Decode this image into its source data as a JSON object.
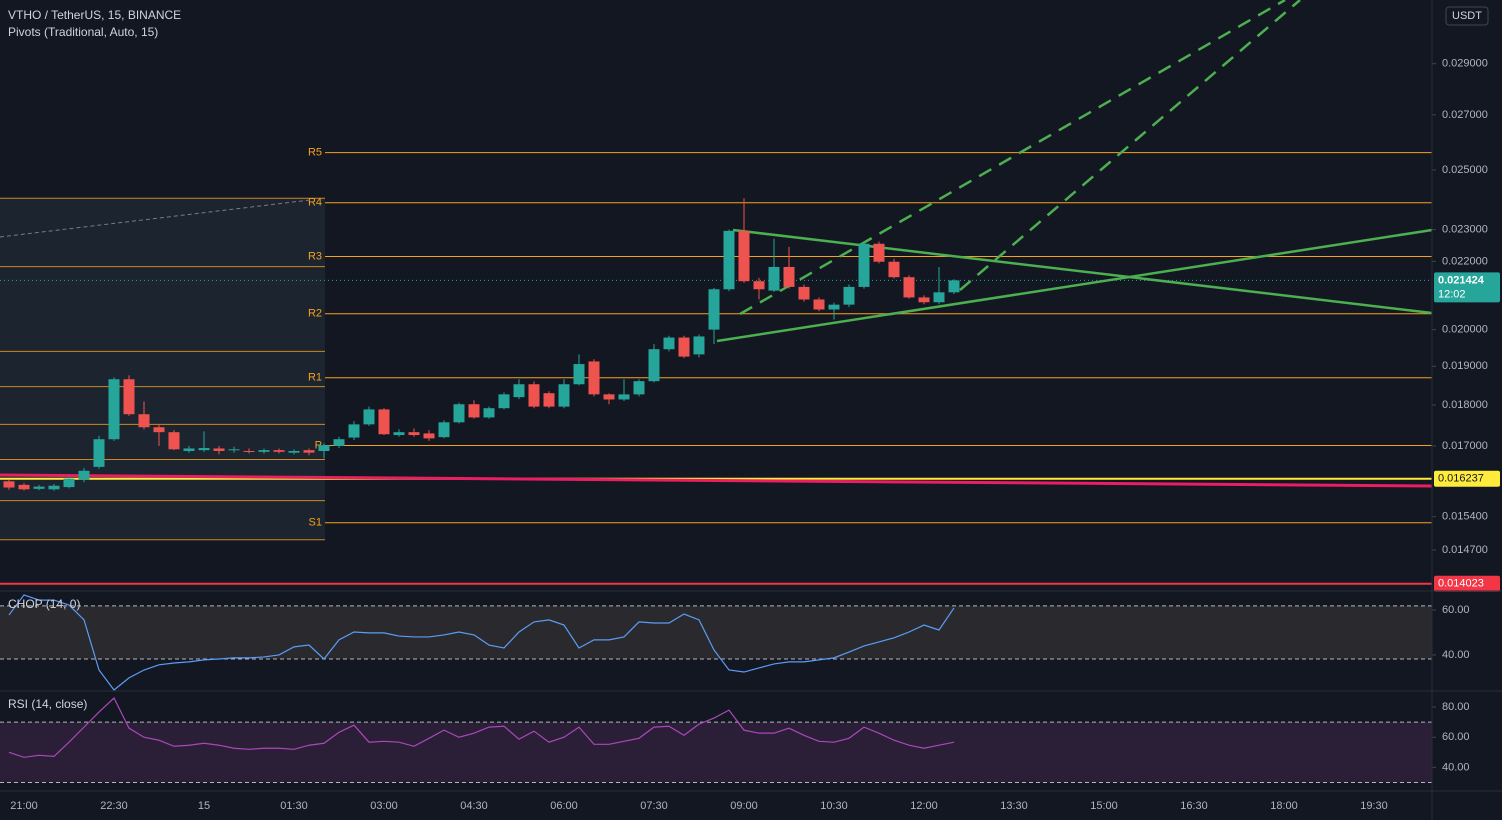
{
  "header": {
    "symbol": "VTHO / TetherUS, 15, BINANCE",
    "indicator": "Pivots (Traditional, Auto, 15)",
    "currency": "USDT"
  },
  "chart_data": [
    {
      "type": "candlestick",
      "categories": [
        null,
        "21:00",
        null,
        null,
        null,
        null,
        null,
        "22:30",
        null,
        null,
        null,
        null,
        null,
        "15",
        null,
        null,
        null,
        null,
        null,
        "01:30",
        null,
        null,
        null,
        null,
        null,
        "03:00",
        null,
        null,
        null,
        null,
        null,
        "04:30",
        null,
        null,
        null,
        null,
        null,
        "06:00",
        null,
        null,
        null,
        null,
        null,
        "07:30",
        null,
        null,
        null,
        null,
        null,
        "09:00",
        null,
        null,
        null,
        null,
        null,
        "10:30",
        null,
        null,
        null,
        null,
        null,
        "12:00",
        null,
        null,
        null,
        null,
        null,
        "13:30",
        null,
        null,
        null,
        null,
        null,
        "15:00",
        null,
        null,
        null,
        null,
        null,
        "16:30",
        null,
        null,
        null,
        null,
        null,
        "18:00",
        null,
        null,
        null,
        null,
        null,
        "19:30",
        null,
        null,
        null
      ],
      "open": [
        0.01618,
        0.0161,
        0.01601,
        0.016,
        0.01605,
        0.01622,
        0.01651,
        0.01716,
        0.01866,
        0.01777,
        0.01745,
        0.01733,
        0.01688,
        0.0169,
        0.01694,
        0.0169,
        0.01688,
        0.01686,
        0.0169,
        0.01684,
        0.0169,
        0.01688,
        0.017,
        0.0172,
        0.01752,
        0.01789,
        0.01726,
        0.01733,
        0.0173,
        0.01721,
        0.01757,
        0.01802,
        0.01769,
        0.01792,
        0.0182,
        0.01853,
        0.0183,
        0.01796,
        0.01853,
        0.01913,
        0.01827,
        0.01814,
        0.01827,
        0.01861,
        0.01946,
        0.01978,
        0.01932,
        0.02,
        0.02116,
        0.02296,
        0.0214,
        0.02112,
        0.02183,
        0.02123,
        0.02086,
        0.02057,
        0.02071,
        0.02123,
        0.02255,
        0.02199,
        0.02152,
        0.02092,
        0.02078,
        0.02107,
        null,
        null,
        null,
        null,
        null,
        null,
        null,
        null,
        null,
        null,
        null,
        null,
        null,
        null,
        null,
        null,
        null,
        null,
        null,
        null,
        null,
        null,
        null,
        null,
        null,
        null,
        null,
        null,
        null,
        null,
        null
      ],
      "high": [
        0.01622,
        0.01614,
        0.0161,
        0.01612,
        0.01628,
        0.01648,
        0.01724,
        0.01871,
        0.01876,
        0.01809,
        0.01752,
        0.01738,
        0.017,
        0.01735,
        0.017,
        0.01698,
        0.01694,
        0.01694,
        0.01694,
        0.01692,
        0.01694,
        0.01706,
        0.01722,
        0.0176,
        0.01796,
        0.01792,
        0.0174,
        0.01742,
        0.01738,
        0.01762,
        0.01806,
        0.01812,
        0.01796,
        0.01832,
        0.01866,
        0.0186,
        0.01835,
        0.01866,
        0.01932,
        0.01919,
        0.0183,
        0.01866,
        0.01866,
        0.0196,
        0.01983,
        0.01983,
        0.01986,
        0.0212,
        0.023,
        0.02403,
        0.0215,
        0.02271,
        0.02245,
        0.0213,
        0.02092,
        0.02077,
        0.0213,
        0.02262,
        0.02262,
        0.02208,
        0.02158,
        0.02098,
        0.02183,
        0.02146,
        null,
        null,
        null,
        null,
        null,
        null,
        null,
        null,
        null,
        null,
        null,
        null,
        null,
        null,
        null,
        null,
        null,
        null,
        null,
        null,
        null,
        null,
        null,
        null,
        null,
        null,
        null,
        null,
        null,
        null,
        null
      ],
      "low": [
        0.01599,
        0.01597,
        0.01598,
        0.01597,
        0.01602,
        0.01616,
        0.01647,
        0.01712,
        0.01773,
        0.0174,
        0.017,
        0.0169,
        0.01684,
        0.01686,
        0.0168,
        0.01684,
        0.01682,
        0.01682,
        0.01682,
        0.0168,
        0.01678,
        0.01671,
        0.01695,
        0.01714,
        0.01748,
        0.01726,
        0.01722,
        0.01722,
        0.01712,
        0.01718,
        0.01754,
        0.01766,
        0.01766,
        0.01789,
        0.01815,
        0.01792,
        0.01792,
        0.01792,
        0.0185,
        0.01822,
        0.01802,
        0.0181,
        0.01822,
        0.01858,
        0.0194,
        0.01922,
        0.01924,
        0.0196,
        0.0211,
        0.02135,
        0.02086,
        0.02108,
        0.02118,
        0.0208,
        0.02052,
        0.02028,
        0.02064,
        0.02118,
        0.02194,
        0.02148,
        0.02088,
        0.02072,
        0.02072,
        0.02102,
        null,
        null,
        null,
        null,
        null,
        null,
        null,
        null,
        null,
        null,
        null,
        null,
        null,
        null,
        null,
        null,
        null,
        null,
        null,
        null,
        null,
        null,
        null,
        null,
        null,
        null,
        null,
        null,
        null,
        null,
        null
      ],
      "close": [
        0.01604,
        0.016,
        0.01606,
        0.01608,
        0.01624,
        0.01642,
        0.01716,
        0.01866,
        0.01777,
        0.01745,
        0.01733,
        0.01692,
        0.01694,
        0.01695,
        0.01688,
        0.01692,
        0.01686,
        0.0169,
        0.01686,
        0.01688,
        0.01684,
        0.01702,
        0.01716,
        0.01752,
        0.01789,
        0.01728,
        0.01733,
        0.01726,
        0.01718,
        0.01757,
        0.01802,
        0.01769,
        0.01792,
        0.01827,
        0.01853,
        0.01796,
        0.01796,
        0.01853,
        0.01906,
        0.01827,
        0.01814,
        0.01827,
        0.01861,
        0.01946,
        0.01978,
        0.01926,
        0.01981,
        0.02116,
        0.02296,
        0.0214,
        0.02116,
        0.02183,
        0.02123,
        0.02086,
        0.02057,
        0.02071,
        0.02123,
        0.02255,
        0.02199,
        0.02152,
        0.02092,
        0.02078,
        0.02107,
        0.021424,
        null,
        null,
        null,
        null,
        null,
        null,
        null,
        null,
        null,
        null,
        null,
        null,
        null,
        null,
        null,
        null,
        null,
        null,
        null,
        null,
        null,
        null,
        null,
        null,
        null,
        null,
        null,
        null,
        null,
        null,
        null
      ],
      "up_color": "#26a69a",
      "down_color": "#ef5350",
      "log_scale": true,
      "ylim": [
        0.0139,
        0.0317
      ],
      "yticks": [
        {
          "value": 0.029,
          "label": "0.029000"
        },
        {
          "value": 0.027,
          "label": "0.027000"
        },
        {
          "value": 0.025,
          "label": "0.025000"
        },
        {
          "value": 0.023,
          "label": "0.023000"
        },
        {
          "value": 0.022,
          "label": "0.022000"
        },
        {
          "value": 0.02,
          "label": "0.020000"
        },
        {
          "value": 0.019,
          "label": "0.019000"
        },
        {
          "value": 0.018,
          "label": "0.018000"
        },
        {
          "value": 0.017,
          "label": "0.017000"
        },
        {
          "value": 0.0154,
          "label": "0.015400"
        },
        {
          "value": 0.0147,
          "label": "0.014700"
        }
      ],
      "pivot_color": "#f7a21b",
      "pivots": [
        {
          "label": "R5",
          "value": 0.02561
        },
        {
          "label": "R4",
          "value": 0.02388
        },
        {
          "label": "R3",
          "value": 0.02215
        },
        {
          "label": "R2",
          "value": 0.02045
        },
        {
          "label": "R1",
          "value": 0.0187
        },
        {
          "label": "P",
          "value": 0.01701
        },
        {
          "label": "S1",
          "value": 0.01527
        }
      ],
      "prior_pivots": [
        0.02403,
        0.02184,
        0.0194,
        0.01847,
        0.01752,
        0.01668,
        0.01575,
        0.01491
      ],
      "price_lines": [
        {
          "value": 0.016237,
          "color": "#ffeb3b"
        },
        {
          "value": 0.014023,
          "color": "#f23645"
        }
      ],
      "last_price": {
        "value": 0.021424,
        "countdown": "12:02",
        "color": "#26a69a"
      }
    },
    {
      "type": "line",
      "title": "CHOP (14, 0)",
      "color": "#5b9cf6",
      "values": [
        57.8,
        66.7,
        64.4,
        64.4,
        62.2,
        55.6,
        33.3,
        24.4,
        29.8,
        33.3,
        35.6,
        36.4,
        36.9,
        37.8,
        38.2,
        38.7,
        38.7,
        39.1,
        40,
        43.6,
        44.4,
        38.2,
        46.7,
        50.2,
        49.8,
        49.8,
        48.4,
        48,
        48,
        48.9,
        50.2,
        48.9,
        44.4,
        43.1,
        50.2,
        54.7,
        55.6,
        53.3,
        43.1,
        46.7,
        46.7,
        48,
        54.7,
        54.2,
        54.2,
        58.2,
        55.6,
        42.2,
        33.3,
        32.4,
        34.2,
        36,
        36.9,
        36.9,
        37.8,
        38.7,
        41.3,
        44,
        45.8,
        47.6,
        50.2,
        53.3,
        51.1,
        60.9,
        null,
        null,
        null,
        null,
        null,
        null,
        null,
        null,
        null,
        null,
        null,
        null,
        null,
        null,
        null,
        null,
        null,
        null,
        null,
        null,
        null,
        null,
        null,
        null,
        null,
        null,
        null,
        null,
        null,
        null,
        null
      ],
      "ylim": [
        24.4,
        68
      ],
      "yticks": [
        {
          "value": 60,
          "label": "60.00"
        },
        {
          "value": 40,
          "label": "40.00"
        }
      ],
      "bands": [
        61.8,
        38.2
      ],
      "band_color": "#2a2a2e"
    },
    {
      "type": "line",
      "title": "RSI (14, close)",
      "color": "#ab47bc",
      "values": [
        50,
        46.7,
        48,
        47.3,
        56.7,
        66.7,
        76.7,
        86,
        66,
        60,
        58,
        54,
        54.7,
        56,
        54.7,
        52.7,
        52,
        52.7,
        52.7,
        52,
        54.7,
        56,
        63.3,
        68,
        56.7,
        57.3,
        56.7,
        54,
        59.3,
        64.7,
        60,
        62.7,
        66.7,
        67.3,
        58.7,
        64,
        56.7,
        60,
        66.7,
        55.3,
        55.3,
        57.3,
        59.3,
        66.7,
        67.3,
        61.3,
        68.7,
        72.7,
        78,
        64.7,
        62.7,
        62.7,
        66,
        61.3,
        57.3,
        56.7,
        59.3,
        66.7,
        62.7,
        58,
        54.7,
        52.7,
        54.7,
        56.7,
        null,
        null,
        null,
        null,
        null,
        null,
        null,
        null,
        null,
        null,
        null,
        null,
        null,
        null,
        null,
        null,
        null,
        null,
        null,
        null,
        null,
        null,
        null,
        null,
        null,
        null,
        null,
        null,
        null,
        null,
        null
      ],
      "ylim": [
        25,
        90
      ],
      "yticks": [
        {
          "value": 80,
          "label": "80.00"
        },
        {
          "value": 60,
          "label": "60.00"
        },
        {
          "value": 40,
          "label": "40.00"
        }
      ],
      "bands": [
        70,
        30
      ],
      "band_color": "#2a1f36"
    }
  ]
}
